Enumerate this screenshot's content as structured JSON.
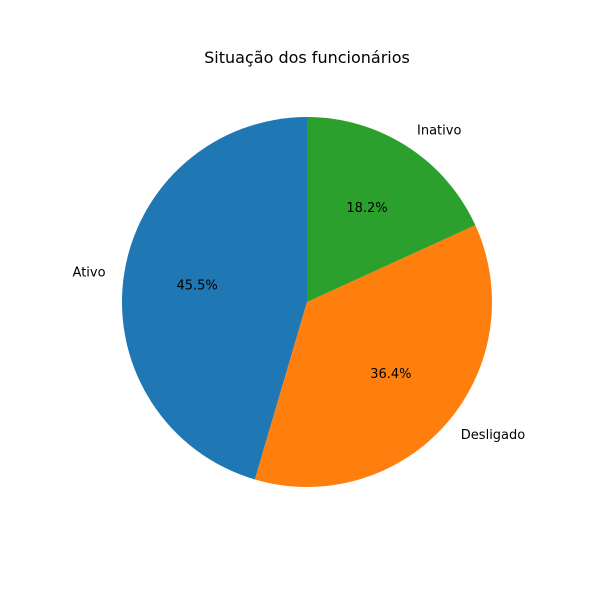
{
  "chart_data": {
    "type": "pie",
    "title": "Situação dos funcionários",
    "labels": [
      "Ativo",
      "Desligado",
      "Inativo"
    ],
    "values": [
      45.5,
      36.4,
      18.2
    ],
    "percent_labels": [
      "45.5%",
      "36.4%",
      "18.2%"
    ],
    "colors": [
      "#1f77b4",
      "#ff7f0e",
      "#2ca02c"
    ],
    "start_angle_deg": 90,
    "direction": "counterclockwise"
  }
}
